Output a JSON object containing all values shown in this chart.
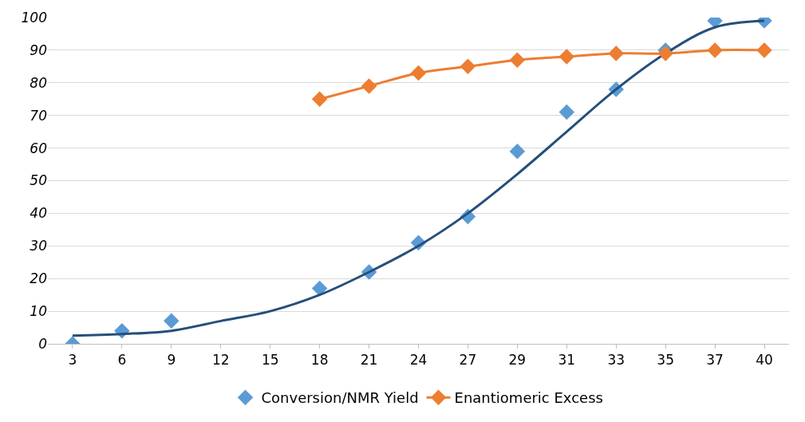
{
  "chart_data": {
    "type": "line",
    "categories": [
      "3",
      "6",
      "9",
      "12",
      "15",
      "18",
      "21",
      "24",
      "27",
      "29",
      "31",
      "33",
      "35",
      "37",
      "40"
    ],
    "series": [
      {
        "name": "Conversion/NMR Yield",
        "type": "scatter",
        "marker": "diamond",
        "color": "#5b9bd5",
        "values": [
          0,
          4,
          7,
          null,
          null,
          17,
          22,
          31,
          39,
          59,
          71,
          78,
          90,
          99,
          99
        ]
      },
      {
        "marker": "none",
        "color": "#254f7a",
        "values": [
          2.5,
          3,
          4,
          7,
          10,
          15,
          22,
          30,
          40,
          52,
          65,
          78,
          89,
          97,
          99
        ]
      },
      {
        "name": "Enantiomeric Excess",
        "marker": "diamond",
        "color": "#ed7d31",
        "values": [
          null,
          null,
          null,
          null,
          null,
          75,
          79,
          83,
          85,
          87,
          88,
          89,
          89,
          90,
          90
        ]
      }
    ],
    "ylim": [
      0,
      100
    ],
    "yticks": [
      0,
      10,
      20,
      30,
      40,
      50,
      60,
      70,
      80,
      90,
      100
    ],
    "grid": "y",
    "legend": "bottom"
  }
}
